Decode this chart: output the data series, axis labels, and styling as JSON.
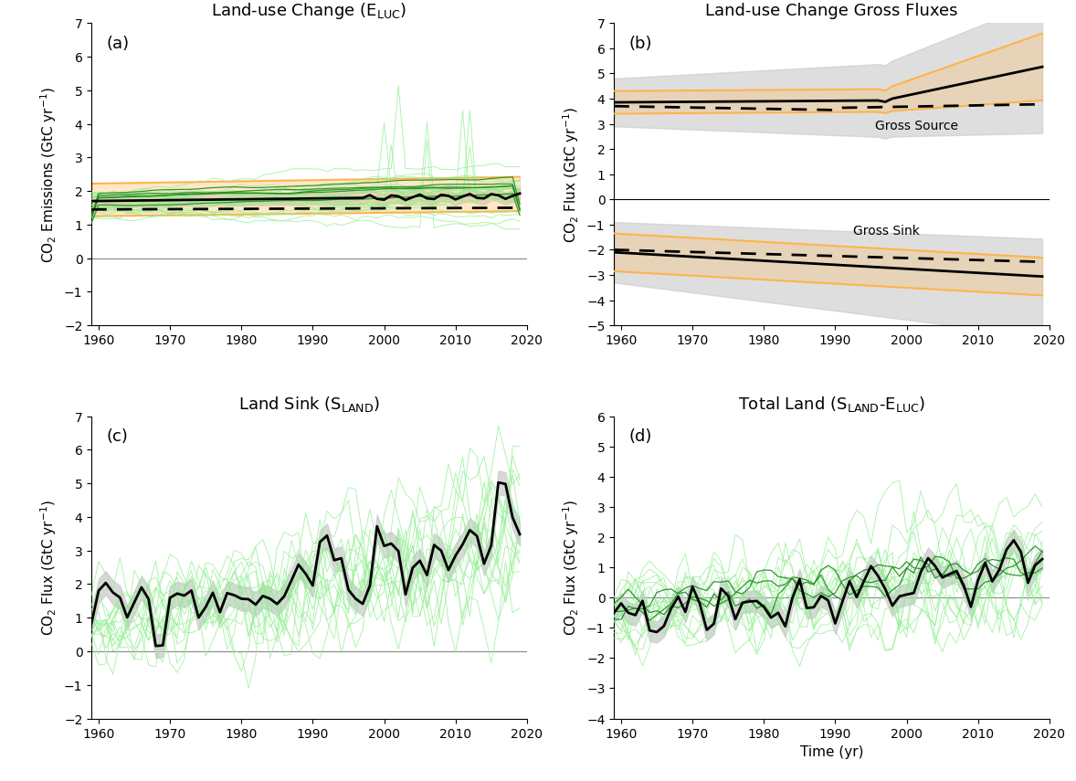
{
  "panel_a": {
    "title": "Land-use Change ($\\mathrm{E_{LUC}}$)",
    "ylabel": "CO$_2$ Emissions (GtC yr$^{-1}$)",
    "ylim": [
      -2,
      7
    ],
    "yticks": [
      -2,
      -1,
      0,
      1,
      2,
      3,
      4,
      5,
      6,
      7
    ],
    "label": "(a)"
  },
  "panel_b": {
    "title": "Land-use Change Gross Fluxes",
    "ylabel": "CO$_2$ Flux (GtC yr$^{-1}$)",
    "ylim": [
      -5,
      7
    ],
    "yticks": [
      -5,
      -4,
      -3,
      -2,
      -1,
      0,
      1,
      2,
      3,
      4,
      5,
      6,
      7
    ],
    "label": "(b)",
    "gross_source_label": "Gross Source",
    "gross_sink_label": "Gross Sink"
  },
  "panel_c": {
    "title": "Land Sink ($\\mathrm{S_{LAND}}$)",
    "ylabel": "CO$_2$ Flux (GtC yr$^{-1}$)",
    "ylim": [
      -2,
      7
    ],
    "yticks": [
      -2,
      -1,
      0,
      1,
      2,
      3,
      4,
      5,
      6,
      7
    ],
    "label": "(c)"
  },
  "panel_d": {
    "title": "Total Land ($\\mathrm{S_{LAND}}$-$\\mathrm{E_{LUC}}$)",
    "ylabel": "CO$_2$ Flux (GtC yr$^{-1}$)",
    "ylim": [
      -4,
      6
    ],
    "yticks": [
      -4,
      -3,
      -2,
      -1,
      0,
      1,
      2,
      3,
      4,
      5,
      6
    ],
    "label": "(d)",
    "xlabel": "Time (yr)"
  },
  "colors": {
    "light_green": "#90EE90",
    "dark_green": "#228B22",
    "orange": "#FFB347",
    "gray_fill": "#C8C8C8",
    "black": "#000000"
  },
  "xlim": [
    1959,
    2020
  ],
  "xticks": [
    1960,
    1970,
    1980,
    1990,
    2000,
    2010,
    2020
  ]
}
